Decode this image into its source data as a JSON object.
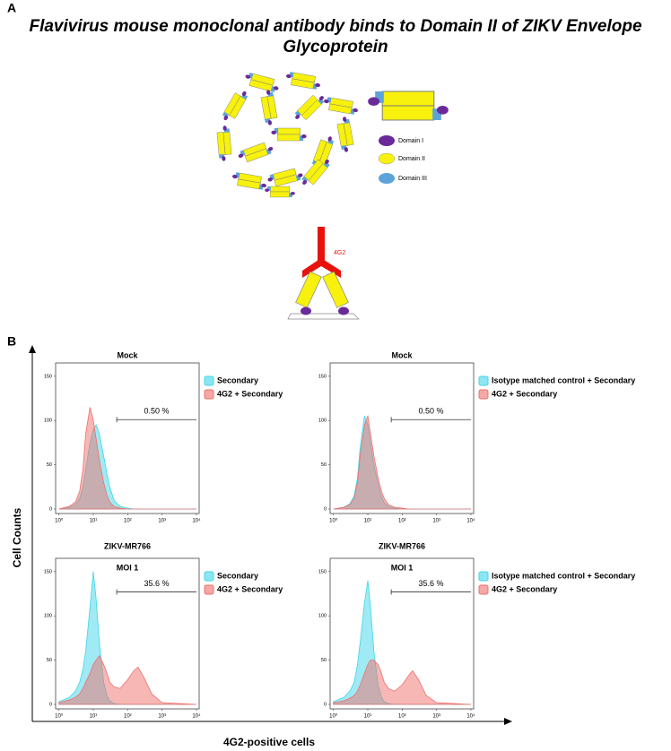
{
  "panel_a": {
    "label": "A",
    "title": "Flavivirus mouse monoclonal antibody binds to Domain II of ZIKV Envelope Glycoprotein",
    "legend": [
      "Domain I",
      "Domain II",
      "Domain III"
    ],
    "antibody": "4G2"
  },
  "panel_b": {
    "label": "B",
    "y_label": "Cell Counts",
    "x_label": "4G2-positive cells"
  },
  "chart_data": [
    {
      "type": "area",
      "title": "Mock",
      "xscale": "log",
      "xlim": [
        0.8,
        12000
      ],
      "ylim": [
        0,
        165
      ],
      "xticks": [
        {
          "value": 1,
          "label": "10⁰"
        },
        {
          "value": 10,
          "label": "10¹"
        },
        {
          "value": 100,
          "label": "10²"
        },
        {
          "value": 1000,
          "label": "10³"
        },
        {
          "value": 10000,
          "label": "10⁴"
        }
      ],
      "yticks": [
        0,
        50,
        100,
        150
      ],
      "x": [
        1,
        2,
        3,
        4,
        5,
        6,
        8,
        10,
        12,
        15,
        20,
        25,
        30,
        40,
        60,
        100,
        150,
        200,
        300,
        500,
        1000,
        10000
      ],
      "series": [
        {
          "name": "Secondary",
          "color": "#3fd6ea",
          "values": [
            0,
            2,
            5,
            12,
            25,
            45,
            75,
            90,
            95,
            85,
            60,
            40,
            25,
            10,
            3,
            1,
            0,
            0,
            0,
            0,
            0,
            0
          ]
        },
        {
          "name": "4G2 + Secondary",
          "color": "#ef6f6c",
          "values": [
            0,
            3,
            8,
            20,
            45,
            85,
            115,
            100,
            80,
            55,
            30,
            15,
            8,
            3,
            1,
            0,
            0,
            0,
            0,
            0,
            0,
            0
          ]
        }
      ],
      "gate": {
        "x": [
          48,
          10000
        ],
        "y": 101,
        "label": "0.50 %"
      }
    },
    {
      "type": "area",
      "title": "Mock",
      "xscale": "log",
      "xlim": [
        0.8,
        12000
      ],
      "ylim": [
        0,
        165
      ],
      "xticks": [
        {
          "value": 1,
          "label": "10⁰"
        },
        {
          "value": 10,
          "label": "10¹"
        },
        {
          "value": 100,
          "label": "10²"
        },
        {
          "value": 1000,
          "label": "10³"
        },
        {
          "value": 10000,
          "label": "10⁴"
        }
      ],
      "yticks": [
        0,
        50,
        100,
        150
      ],
      "x": [
        1,
        2,
        3,
        4,
        5,
        6,
        8,
        10,
        12,
        15,
        20,
        25,
        30,
        40,
        60,
        100,
        150,
        200,
        300,
        500,
        1000,
        10000
      ],
      "series": [
        {
          "name": "Isotype matched control + Secondary",
          "color": "#3fd6ea",
          "values": [
            0,
            2,
            6,
            15,
            35,
            70,
            105,
            95,
            75,
            50,
            28,
            14,
            7,
            3,
            1,
            0,
            0,
            0,
            0,
            0,
            0,
            0
          ]
        },
        {
          "name": "4G2 + Secondary",
          "color": "#ef6f6c",
          "values": [
            0,
            2,
            5,
            12,
            30,
            60,
            95,
            105,
            85,
            60,
            35,
            20,
            12,
            5,
            2,
            1,
            0,
            0,
            0,
            0,
            0,
            0
          ]
        }
      ],
      "gate": {
        "x": [
          48,
          10000
        ],
        "y": 101,
        "label": "0.50 %"
      }
    },
    {
      "type": "area",
      "title": "ZIKV-MR766",
      "subtitle": "MOI 1",
      "xscale": "log",
      "xlim": [
        0.8,
        12000
      ],
      "ylim": [
        0,
        165
      ],
      "xticks": [
        {
          "value": 1,
          "label": "10⁰"
        },
        {
          "value": 10,
          "label": "10¹"
        },
        {
          "value": 100,
          "label": "10²"
        },
        {
          "value": 1000,
          "label": "10³"
        },
        {
          "value": 10000,
          "label": "10⁴"
        }
      ],
      "yticks": [
        0,
        50,
        100,
        150
      ],
      "x": [
        1,
        2,
        3,
        4,
        5,
        6,
        8,
        10,
        12,
        15,
        20,
        25,
        30,
        40,
        60,
        100,
        150,
        200,
        300,
        500,
        1000,
        10000
      ],
      "series": [
        {
          "name": "Secondary",
          "color": "#3fd6ea",
          "values": [
            3,
            8,
            15,
            25,
            40,
            60,
            110,
            150,
            120,
            70,
            25,
            10,
            4,
            1,
            0,
            0,
            0,
            0,
            0,
            0,
            0,
            0
          ]
        },
        {
          "name": "4G2 + Secondary",
          "color": "#ef6f6c",
          "values": [
            2,
            5,
            8,
            12,
            18,
            25,
            35,
            45,
            50,
            55,
            45,
            35,
            25,
            20,
            18,
            28,
            38,
            42,
            30,
            12,
            2,
            0
          ]
        }
      ],
      "gate": {
        "x": [
          48,
          10000
        ],
        "y": 127,
        "label": "35.6 %"
      }
    },
    {
      "type": "area",
      "title": "ZIKV-MR766",
      "subtitle": "MOI 1",
      "xscale": "log",
      "xlim": [
        0.8,
        12000
      ],
      "ylim": [
        0,
        165
      ],
      "xticks": [
        {
          "value": 1,
          "label": "10⁰"
        },
        {
          "value": 10,
          "label": "10¹"
        },
        {
          "value": 100,
          "label": "10²"
        },
        {
          "value": 1000,
          "label": "10³"
        },
        {
          "value": 10000,
          "label": "10⁴"
        }
      ],
      "yticks": [
        0,
        50,
        100,
        150
      ],
      "x": [
        1,
        2,
        3,
        4,
        5,
        6,
        8,
        10,
        12,
        15,
        20,
        25,
        30,
        40,
        60,
        100,
        150,
        200,
        300,
        500,
        1000,
        10000
      ],
      "series": [
        {
          "name": "Isotype matched control + Secondary",
          "color": "#3fd6ea",
          "values": [
            3,
            8,
            15,
            25,
            45,
            70,
            115,
            140,
            110,
            60,
            22,
            8,
            3,
            1,
            0,
            0,
            0,
            0,
            0,
            0,
            0,
            0
          ]
        },
        {
          "name": "4G2 + Secondary",
          "color": "#ef6f6c",
          "values": [
            2,
            4,
            7,
            10,
            15,
            22,
            35,
            45,
            50,
            50,
            45,
            35,
            25,
            18,
            15,
            22,
            32,
            38,
            28,
            10,
            2,
            0
          ]
        }
      ],
      "gate": {
        "x": [
          48,
          10000
        ],
        "y": 127,
        "label": "35.6 %"
      }
    }
  ]
}
